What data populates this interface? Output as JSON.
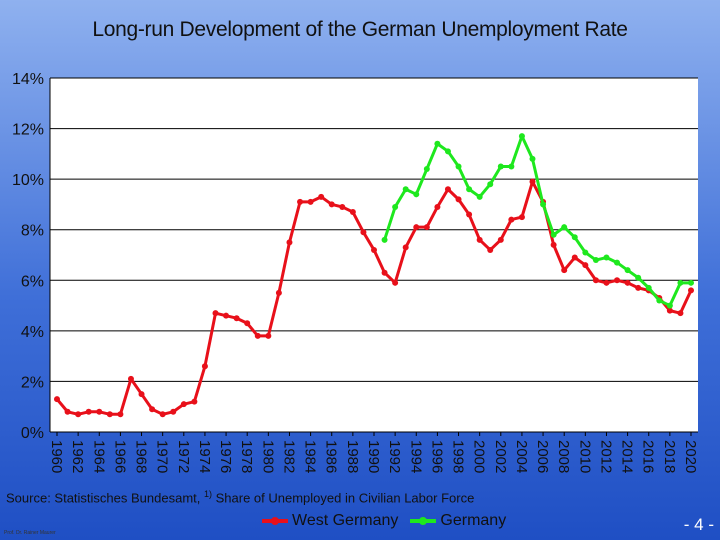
{
  "chart_data": {
    "type": "line",
    "title": "Long-run Development of the German Unemployment Rate",
    "ylim": [
      0,
      14
    ],
    "yticks": [
      "0%",
      "2%",
      "4%",
      "6%",
      "8%",
      "10%",
      "12%",
      "14%"
    ],
    "x_range": [
      1960,
      2020
    ],
    "xticks": [
      "1960",
      "1962",
      "1964",
      "1966",
      "1968",
      "1970",
      "1972",
      "1974",
      "1976",
      "1978",
      "1980",
      "1982",
      "1984",
      "1986",
      "1988",
      "1990",
      "1992",
      "1994",
      "1996",
      "1998",
      "2000",
      "2002",
      "2004",
      "2006",
      "2008",
      "2010",
      "2012",
      "2014",
      "2016",
      "2018",
      "2020"
    ],
    "grid": true,
    "legend_position": "bottom",
    "series": [
      {
        "name": "West Germany",
        "color": "#e8101a",
        "x": [
          1960,
          1961,
          1962,
          1963,
          1964,
          1965,
          1966,
          1967,
          1968,
          1969,
          1970,
          1971,
          1972,
          1973,
          1974,
          1975,
          1976,
          1977,
          1978,
          1979,
          1980,
          1981,
          1982,
          1983,
          1984,
          1985,
          1986,
          1987,
          1988,
          1989,
          1990,
          1991,
          1992,
          1993,
          1994,
          1995,
          1996,
          1997,
          1998,
          1999,
          2000,
          2001,
          2002,
          2003,
          2004,
          2005,
          2006,
          2007,
          2008,
          2009,
          2010,
          2011,
          2012,
          2013,
          2014,
          2015,
          2016,
          2017,
          2018,
          2019,
          2020
        ],
        "values": [
          1.3,
          0.8,
          0.7,
          0.8,
          0.8,
          0.7,
          0.7,
          2.1,
          1.5,
          0.9,
          0.7,
          0.8,
          1.1,
          1.2,
          2.6,
          4.7,
          4.6,
          4.5,
          4.3,
          3.8,
          3.8,
          5.5,
          7.5,
          9.1,
          9.1,
          9.3,
          9.0,
          8.9,
          8.7,
          7.9,
          7.2,
          6.3,
          5.9,
          7.3,
          8.1,
          8.1,
          8.9,
          9.6,
          9.2,
          8.6,
          7.6,
          7.2,
          7.6,
          8.4,
          8.5,
          9.9,
          9.1,
          7.4,
          6.4,
          6.9,
          6.6,
          6.0,
          5.9,
          6.0,
          5.9,
          5.7,
          5.6,
          5.3,
          4.8,
          4.7,
          5.6
        ]
      },
      {
        "name": "Germany",
        "color": "#1ee81e",
        "x": [
          1991,
          1992,
          1993,
          1994,
          1995,
          1996,
          1997,
          1998,
          1999,
          2000,
          2001,
          2002,
          2003,
          2004,
          2005,
          2006,
          2007,
          2008,
          2009,
          2010,
          2011,
          2012,
          2013,
          2014,
          2015,
          2016,
          2017,
          2018,
          2019,
          2020
        ],
        "values": [
          7.6,
          8.9,
          9.6,
          9.4,
          10.4,
          11.4,
          11.1,
          10.5,
          9.6,
          9.3,
          9.8,
          10.5,
          10.5,
          11.7,
          10.8,
          9.0,
          7.8,
          8.1,
          7.7,
          7.1,
          6.8,
          6.9,
          6.7,
          6.4,
          6.1,
          5.7,
          5.2,
          5.0,
          5.9,
          5.9
        ]
      }
    ]
  },
  "source": {
    "text_before": "Source: Statistisches Bundesamt, ",
    "footnote_mark": "1)",
    "text_after": " Share of Unemployed in Civilian Labor Force"
  },
  "author": "Prof. Dr. Rainer Maurer",
  "page_number": "- 4 -"
}
